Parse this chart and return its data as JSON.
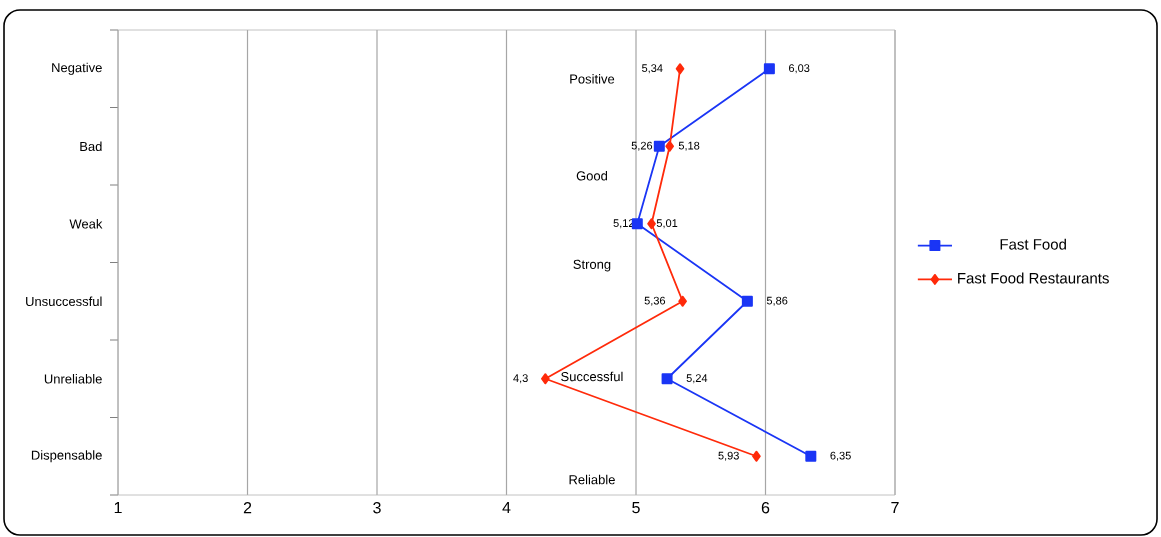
{
  "chart_data": {
    "type": "line",
    "orientation": "horizontal",
    "categories": [
      "Negative",
      "Bad",
      "Weak",
      "Unsuccessful",
      "Unreliable",
      "Dispensable"
    ],
    "series": [
      {
        "name": "Fast Food",
        "color": "#1a35f5",
        "marker": "square",
        "values": [
          6.03,
          5.18,
          5.01,
          5.86,
          5.24,
          6.35
        ],
        "value_labels": [
          "6,03",
          "5,18",
          "5,01",
          "5,86",
          "5,24",
          "6,35"
        ]
      },
      {
        "name": "Fast Food Restaurants",
        "color": "#ff2a0a",
        "marker": "diamond",
        "values": [
          5.34,
          5.26,
          5.12,
          5.36,
          4.3,
          5.93
        ],
        "value_labels": [
          "5,34",
          "5,26",
          "5,12",
          "5,36",
          "4,3",
          "5,93"
        ]
      }
    ],
    "annotations": [
      "Positive",
      "Good",
      "Strong",
      "Successful",
      "Reliable"
    ],
    "xlim": [
      1,
      7
    ],
    "xticks": [
      1,
      2,
      3,
      4,
      5,
      6,
      7
    ],
    "grid": "x",
    "legend": "right"
  }
}
